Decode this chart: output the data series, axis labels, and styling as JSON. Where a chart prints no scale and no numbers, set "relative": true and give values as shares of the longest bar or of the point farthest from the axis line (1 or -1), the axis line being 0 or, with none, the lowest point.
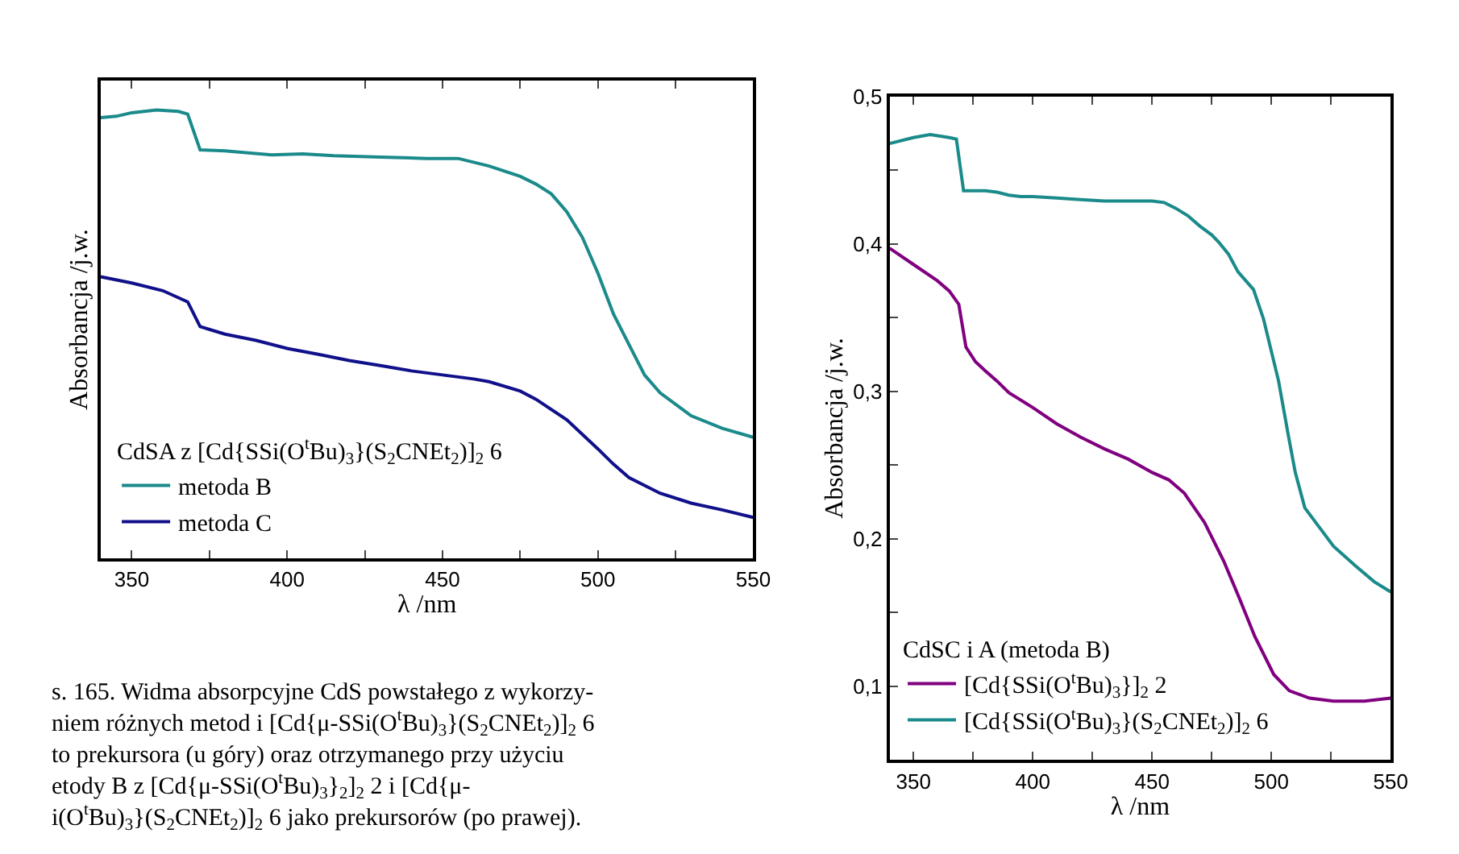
{
  "chart_data": [
    {
      "type": "line",
      "relative": true,
      "xlabel": "λ /nm",
      "ylabel": "Absorbancja /j.w.",
      "legend_title": "CdSA z [Cd{SSi(O$^{t}$Bu)$_{3}$}(S$_{2}$CNEt$_{2}$)]$_{2}$ 6",
      "legend": "bottom left",
      "tick_labels": "x",
      "xlim": [
        340,
        550
      ],
      "xticks": [
        {
          "value": 350,
          "label": "350"
        },
        {
          "value": 375,
          "label": null
        },
        {
          "value": 400,
          "label": "400"
        },
        {
          "value": 425,
          "label": null
        },
        {
          "value": 450,
          "label": "450"
        },
        {
          "value": 475,
          "label": null
        },
        {
          "value": 500,
          "label": "500"
        },
        {
          "value": 525,
          "label": null
        },
        {
          "value": 550,
          "label": "550"
        }
      ],
      "series": [
        {
          "name": "metoda B",
          "color": "#1a8a8a",
          "x": [
            340,
            345,
            350,
            358,
            365,
            368,
            372,
            380,
            395,
            405,
            415,
            430,
            445,
            455,
            465,
            475,
            480,
            485,
            490,
            495,
            500,
            505,
            510,
            515,
            520,
            530,
            540,
            550
          ],
          "values": [
            0.983,
            0.986,
            0.994,
            1.0,
            0.997,
            0.991,
            0.911,
            0.909,
            0.9,
            0.902,
            0.898,
            0.895,
            0.892,
            0.892,
            0.875,
            0.852,
            0.835,
            0.813,
            0.773,
            0.716,
            0.636,
            0.545,
            0.477,
            0.409,
            0.369,
            0.318,
            0.29,
            0.27
          ]
        },
        {
          "name": "metoda C",
          "color": "#10108a",
          "x": [
            340,
            350,
            360,
            368,
            372,
            380,
            390,
            400,
            410,
            420,
            430,
            440,
            450,
            460,
            465,
            475,
            480,
            490,
            500,
            505,
            510,
            520,
            530,
            540,
            550
          ],
          "values": [
            0.628,
            0.614,
            0.597,
            0.572,
            0.517,
            0.5,
            0.486,
            0.468,
            0.455,
            0.441,
            0.43,
            0.418,
            0.409,
            0.4,
            0.394,
            0.373,
            0.355,
            0.309,
            0.244,
            0.21,
            0.18,
            0.145,
            0.123,
            0.108,
            0.091
          ]
        }
      ],
      "annotations": [
        "s. 165. Widma absorpcyjne CdS powstałego z wykorzy-\nniem różnych metod i [Cd{μ-SSi(O$^{t}$Bu)$_{3}$}(S$_{2}$CNEt$_{2}$)]$_{2}$ 6\nto prekursora (u góry) oraz otrzymanego przy użyciu\netody B z [Cd{μ-SSi(O$^{t}$Bu)$_{3}$}$_{2}$]$_{2}$ 2 i [Cd{μ-\ni(O$^{t}$Bu)$_{3}$}(S$_{2}$CNEt$_{2}$)]$_{2}$ 6 jako prekursorów (po prawej)."
      ]
    },
    {
      "type": "line",
      "xlabel": "λ /nm",
      "ylabel": "Absorbancja /j.w.",
      "legend_title": "CdSC i A (metoda B)",
      "legend": "bottom left",
      "xlim": [
        340,
        550
      ],
      "xticks": [
        {
          "value": 350,
          "label": "350"
        },
        {
          "value": 375,
          "label": null
        },
        {
          "value": 400,
          "label": "400"
        },
        {
          "value": 425,
          "label": null
        },
        {
          "value": 450,
          "label": "450"
        },
        {
          "value": 475,
          "label": null
        },
        {
          "value": 500,
          "label": "500"
        },
        {
          "value": 525,
          "label": null
        },
        {
          "value": 550,
          "label": "550"
        }
      ],
      "ylim": [
        0.05,
        0.5
      ],
      "yticks": [
        {
          "value": 0.1,
          "label": "0,1"
        },
        {
          "value": 0.15,
          "label": null
        },
        {
          "value": 0.2,
          "label": "0,2"
        },
        {
          "value": 0.25,
          "label": null
        },
        {
          "value": 0.3,
          "label": "0,3"
        },
        {
          "value": 0.35,
          "label": null
        },
        {
          "value": 0.4,
          "label": "0,4"
        },
        {
          "value": 0.45,
          "label": null
        },
        {
          "value": 0.5,
          "label": "0,5"
        }
      ],
      "series": [
        {
          "name": "[Cd{SSi(O$^{t}$Bu)$_{3}$}]$_{2}$ 2",
          "color": "#800080",
          "x": [
            340,
            350,
            360,
            365,
            369,
            372,
            376,
            380,
            385,
            390,
            395,
            400,
            410,
            420,
            430,
            440,
            450,
            457,
            463.5,
            472,
            480,
            486.5,
            493,
            501,
            507.5,
            516,
            526,
            539,
            550
          ],
          "values": [
            0.397,
            0.386,
            0.375,
            0.368,
            0.359,
            0.33,
            0.32,
            0.314,
            0.307,
            0.299,
            0.294,
            0.289,
            0.278,
            0.269,
            0.261,
            0.254,
            0.245,
            0.24,
            0.231,
            0.211,
            0.185,
            0.16,
            0.134,
            0.108,
            0.097,
            0.092,
            0.09,
            0.09,
            0.092
          ]
        },
        {
          "name": "[Cd{SSi(O$^{t}$Bu)$_{3}$}(S$_{2}$CNEt$_{2}$)]$_{2}$ 6",
          "color": "#1a8a8a",
          "x": [
            340,
            350,
            357,
            365,
            368,
            371,
            380,
            385,
            390,
            395,
            400,
            410,
            420,
            430,
            450,
            455,
            460,
            465,
            470,
            475,
            478,
            482,
            486,
            492.5,
            496.7,
            503,
            507,
            510,
            514,
            520,
            526,
            535,
            543,
            550
          ],
          "values": [
            0.468,
            0.472,
            0.474,
            0.472,
            0.471,
            0.436,
            0.436,
            0.435,
            0.433,
            0.432,
            0.432,
            0.431,
            0.43,
            0.429,
            0.429,
            0.428,
            0.424,
            0.419,
            0.412,
            0.406,
            0.401,
            0.393,
            0.381,
            0.369,
            0.349,
            0.307,
            0.271,
            0.245,
            0.221,
            0.208,
            0.195,
            0.182,
            0.171,
            0.164
          ]
        }
      ]
    }
  ]
}
